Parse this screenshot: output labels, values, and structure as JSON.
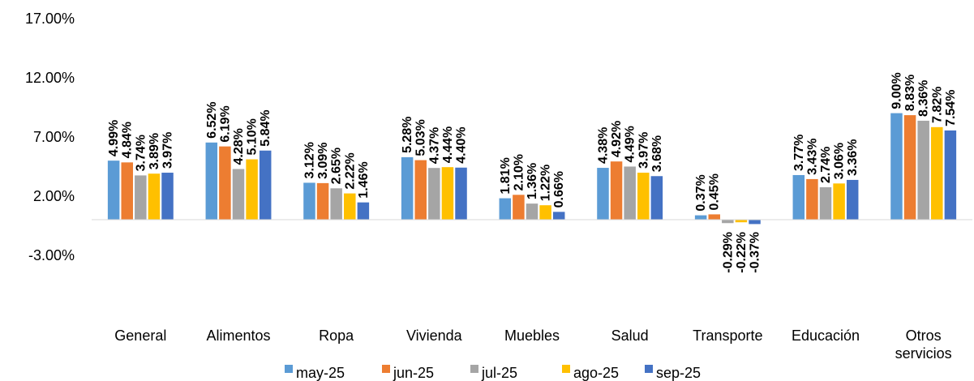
{
  "chart_data": {
    "type": "bar",
    "categories": [
      "General",
      "Alimentos",
      "Ropa",
      "Vivienda",
      "Muebles",
      "Salud",
      "Transporte",
      "Educación",
      "Otros servicios"
    ],
    "series": [
      {
        "name": "may-25",
        "color": "#5B9BD5",
        "values": [
          4.99,
          6.52,
          3.12,
          5.28,
          1.81,
          4.38,
          0.37,
          3.77,
          9.0
        ],
        "labels": [
          "4.99%",
          "6.52%",
          "3.12%",
          "5.28%",
          "1.81%",
          "4.38%",
          "0.37%",
          "3.77%",
          "9.00%"
        ]
      },
      {
        "name": "jun-25",
        "color": "#ED7D31",
        "values": [
          4.84,
          6.19,
          3.09,
          5.03,
          2.1,
          4.92,
          0.45,
          3.43,
          8.83
        ],
        "labels": [
          "4.84%",
          "6.19%",
          "3.09%",
          "5.03%",
          "2.10%",
          "4.92%",
          "0.45%",
          "3.43%",
          "8.83%"
        ]
      },
      {
        "name": "jul-25",
        "color": "#A5A5A5",
        "values": [
          3.74,
          4.28,
          2.65,
          4.37,
          1.36,
          4.49,
          -0.29,
          2.74,
          8.36
        ],
        "labels": [
          "3.74%",
          "4.28%",
          "2.65%",
          "4.37%",
          "1.36%",
          "4.49%",
          "-0.29%",
          "2.74%",
          "8.36%"
        ]
      },
      {
        "name": "ago-25",
        "color": "#FFC000",
        "values": [
          3.89,
          5.1,
          2.22,
          4.44,
          1.22,
          3.97,
          -0.22,
          3.06,
          7.82
        ],
        "labels": [
          "3.89%",
          "5.10%",
          "2.22%",
          "4.44%",
          "1.22%",
          "3.97%",
          "-0.22%",
          "3.06%",
          "7.82%"
        ]
      },
      {
        "name": "sep-25",
        "color": "#4472C4",
        "values": [
          3.97,
          5.84,
          1.46,
          4.4,
          0.66,
          3.68,
          -0.37,
          3.36,
          7.54
        ],
        "labels": [
          "3.97%",
          "5.84%",
          "1.46%",
          "4.40%",
          "0.66%",
          "3.68%",
          "-0.37%",
          "3.36%",
          "7.54%"
        ]
      }
    ],
    "ylim": [
      -8,
      17
    ],
    "yticks": [
      17,
      12,
      7,
      2,
      -3
    ],
    "ytick_labels": [
      "17.00%",
      "12.00%",
      "7.00%",
      "2.00%",
      "-3.00%"
    ],
    "grid": false,
    "legend_position": "bottom",
    "title": "",
    "xlabel": "",
    "ylabel": ""
  }
}
